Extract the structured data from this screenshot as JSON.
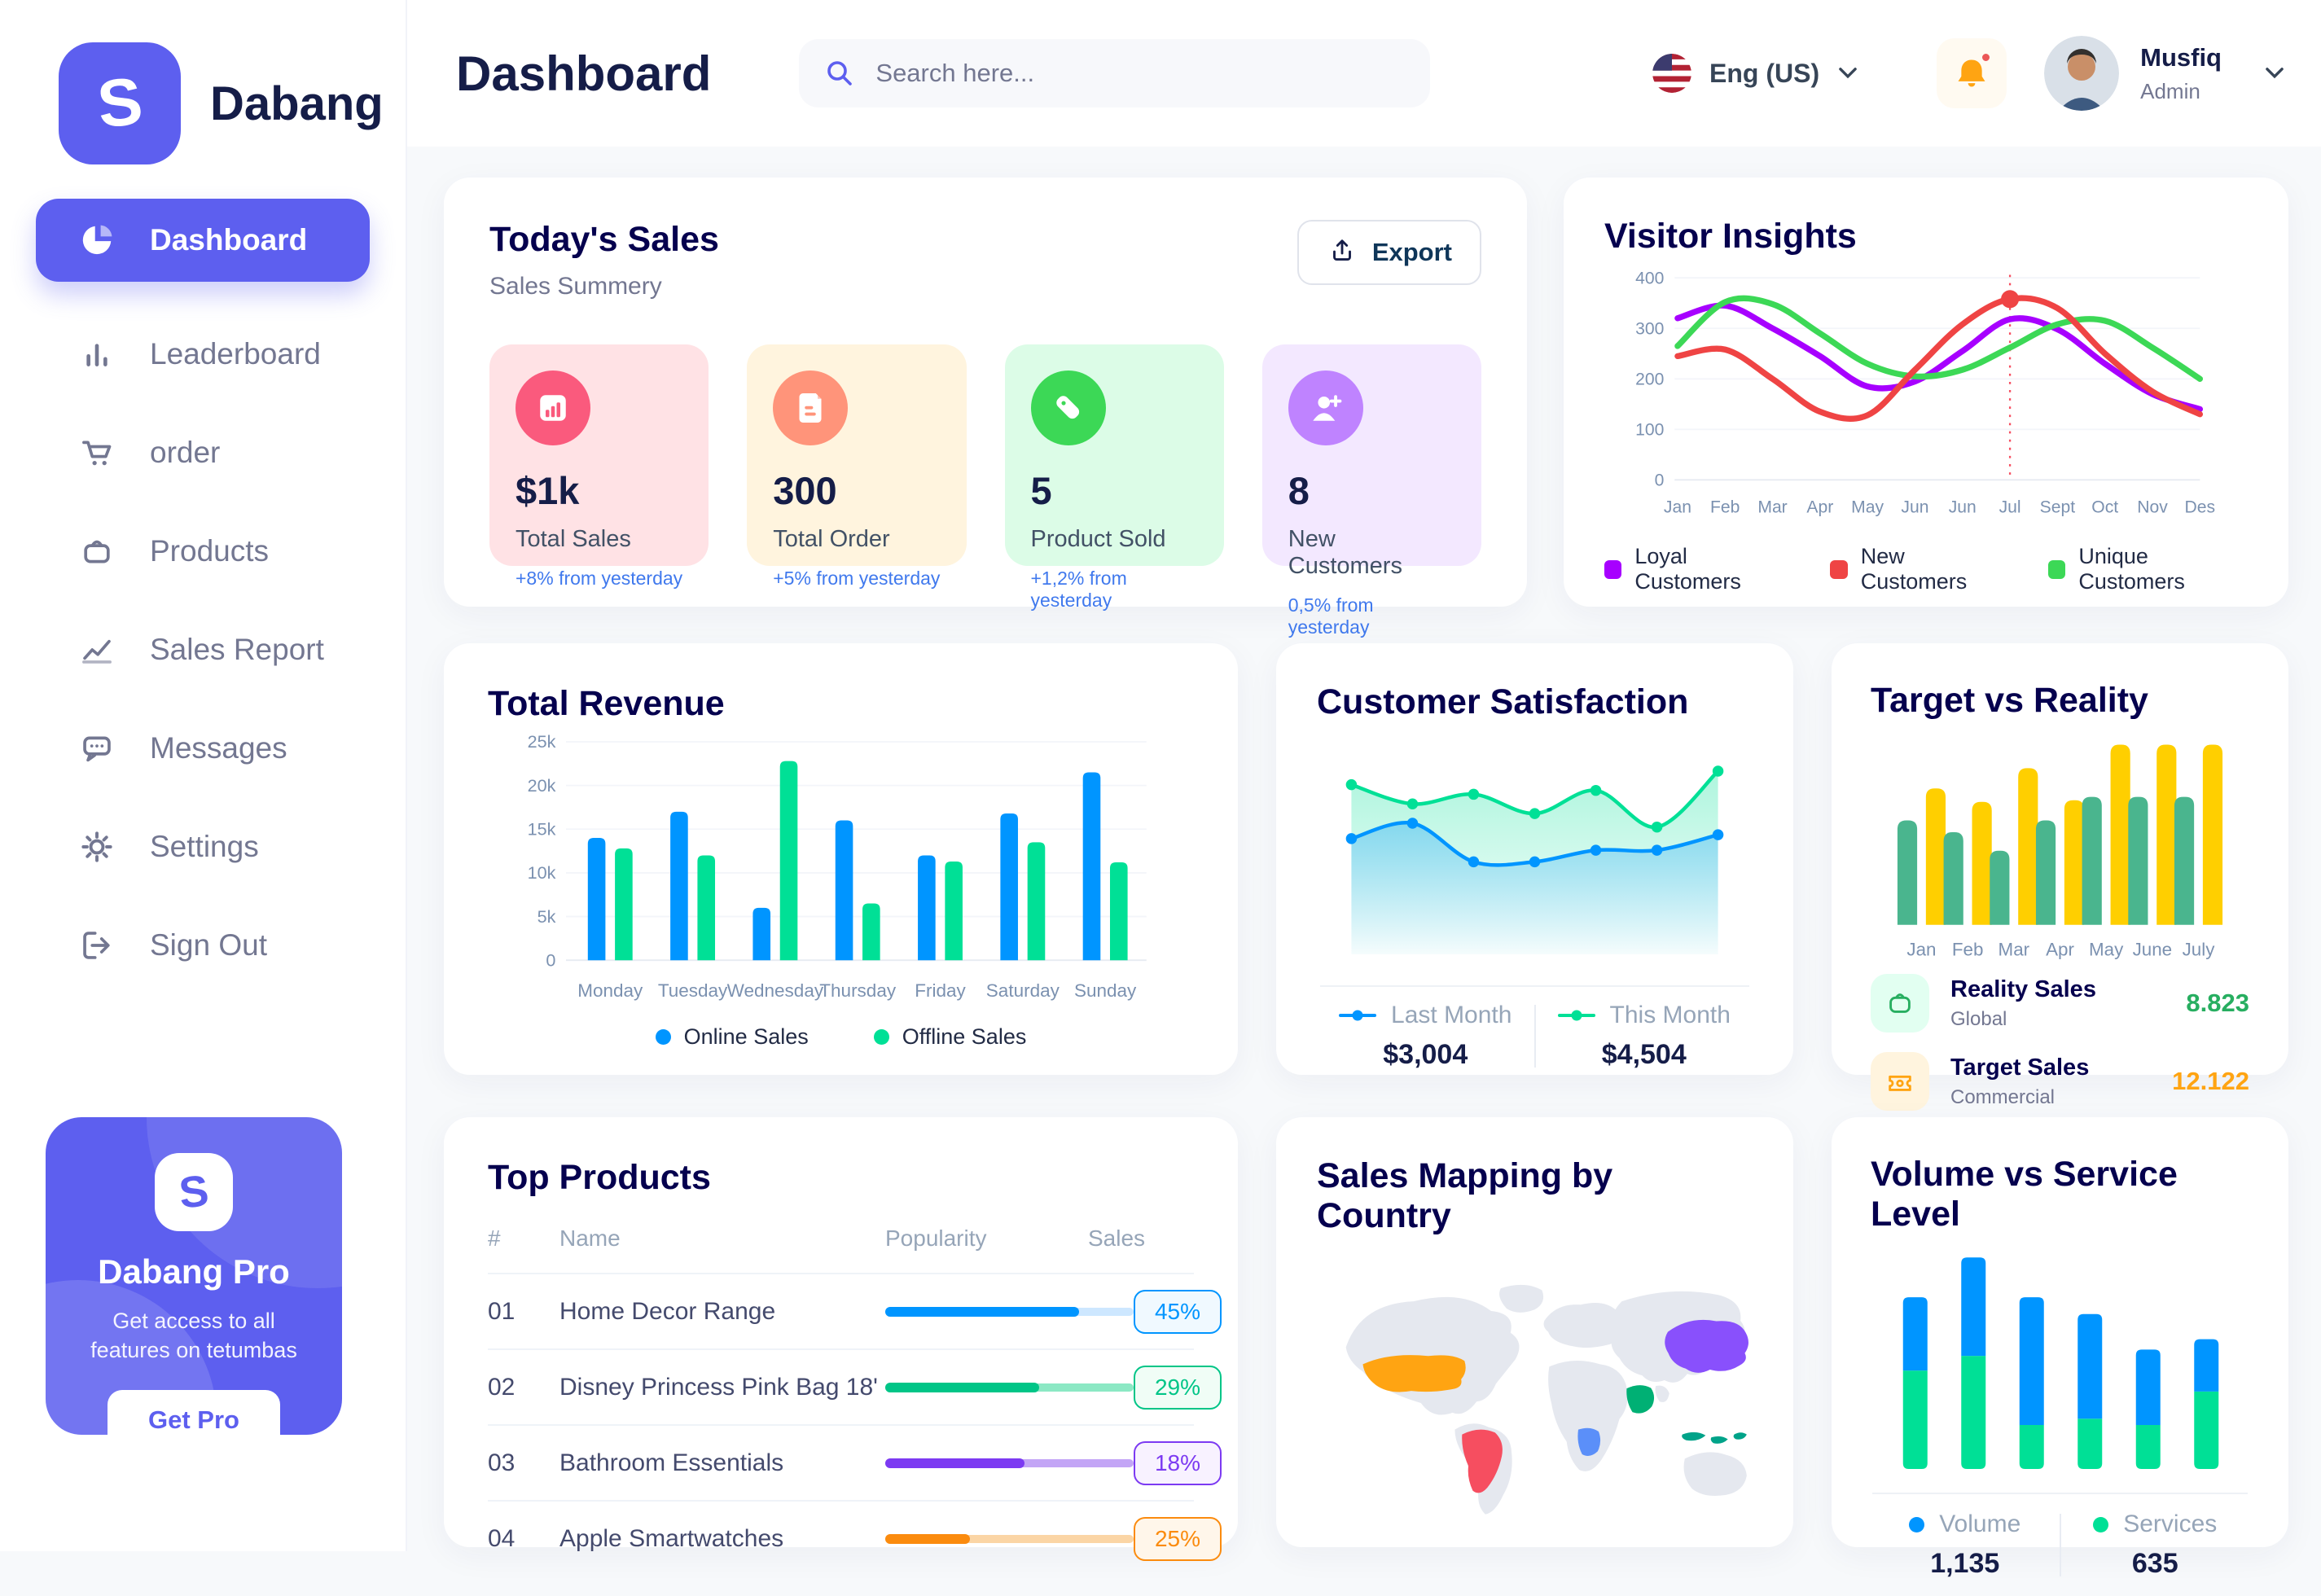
{
  "app": {
    "brand": "Dabang"
  },
  "header": {
    "title": "Dashboard",
    "search_placeholder": "Search here...",
    "language": "Eng (US)",
    "user_name": "Musfiq",
    "user_role": "Admin"
  },
  "sidebar": {
    "items": [
      {
        "label": "Dashboard",
        "active": true
      },
      {
        "label": "Leaderboard"
      },
      {
        "label": "order"
      },
      {
        "label": "Products"
      },
      {
        "label": "Sales Report"
      },
      {
        "label": "Messages"
      },
      {
        "label": "Settings"
      },
      {
        "label": "Sign Out"
      }
    ],
    "pro": {
      "title": "Dabang Pro",
      "line1": "Get access to all",
      "line2": "features on tetumbas",
      "cta": "Get Pro"
    }
  },
  "todays_sales": {
    "title": "Today's Sales",
    "subtitle": "Sales Summery",
    "export_label": "Export",
    "stats": [
      {
        "value": "$1k",
        "label": "Total Sales",
        "delta": "+8% from yesterday",
        "bg": "#FFE2E5",
        "accent": "#FA5A7D",
        "icon": "bar-chart-icon"
      },
      {
        "value": "300",
        "label": "Total Order",
        "delta": "+5% from yesterday",
        "bg": "#FFF4DE",
        "accent": "#FF947A",
        "icon": "order-file-icon"
      },
      {
        "value": "5",
        "label": "Product Sold",
        "delta": "+1,2% from yesterday",
        "bg": "#DCFCE7",
        "accent": "#3CD856",
        "icon": "tag-icon"
      },
      {
        "value": "8",
        "label": "New Customers",
        "delta": "0,5% from yesterday",
        "bg": "#F3E8FF",
        "accent": "#BF83FF",
        "icon": "user-plus-icon"
      }
    ]
  },
  "chart_data": [
    {
      "id": "visitor_insights",
      "type": "line",
      "title": "Visitor Insights",
      "x": [
        "Jan",
        "Feb",
        "Mar",
        "Apr",
        "May",
        "Jun",
        "Jun",
        "Jul",
        "Sept",
        "Oct",
        "Nov",
        "Des"
      ],
      "ylim": [
        0,
        400
      ],
      "yticks": [
        0,
        100,
        200,
        300,
        400
      ],
      "grid": true,
      "legend_position": "bottom",
      "annotation_x_index": 7,
      "series": [
        {
          "name": "Loyal Customers",
          "color": "#A700FF",
          "values": [
            320,
            345,
            300,
            245,
            185,
            195,
            255,
            318,
            298,
            230,
            170,
            140
          ]
        },
        {
          "name": "New Customers",
          "color": "#EF4444",
          "values": [
            245,
            258,
            200,
            135,
            128,
            218,
            308,
            358,
            340,
            250,
            175,
            130
          ]
        },
        {
          "name": "Unique Customers",
          "color": "#3CD856",
          "values": [
            265,
            352,
            348,
            290,
            230,
            205,
            218,
            262,
            308,
            315,
            262,
            200
          ]
        }
      ]
    },
    {
      "id": "total_revenue",
      "type": "bar",
      "title": "Total Revenue",
      "categories": [
        "Monday",
        "Tuesday",
        "Wednesday",
        "Thursday",
        "Friday",
        "Saturday",
        "Sunday"
      ],
      "ylim": [
        0,
        25000
      ],
      "ytick_labels": [
        "0",
        "5k",
        "10k",
        "15k",
        "20k",
        "25k"
      ],
      "series": [
        {
          "name": "Online Sales",
          "color": "#0095FF",
          "values": [
            14000,
            17000,
            6000,
            16000,
            12000,
            16800,
            21500
          ]
        },
        {
          "name": "Offline Sales",
          "color": "#00E096",
          "values": [
            12800,
            12000,
            22800,
            6500,
            11300,
            13500,
            11200
          ]
        }
      ]
    },
    {
      "id": "customer_satisfaction",
      "type": "area",
      "title": "Customer Satisfaction",
      "ylim": [
        0,
        110
      ],
      "series": [
        {
          "name": "Last Month",
          "color": "#0095FF",
          "total": "$3,004",
          "values": [
            60,
            68,
            48,
            48,
            54,
            54,
            62
          ]
        },
        {
          "name": "This Month",
          "color": "#00E096",
          "total": "$4,504",
          "values": [
            88,
            78,
            83,
            73,
            85,
            66,
            95
          ]
        }
      ]
    },
    {
      "id": "target_vs_reality",
      "type": "bar",
      "title": "Target vs Reality",
      "categories": [
        "Jan",
        "Feb",
        "Mar",
        "Apr",
        "May",
        "June",
        "July"
      ],
      "ylim": [
        0,
        11
      ],
      "series": [
        {
          "name": "Reality Sales",
          "subtitle": "Global",
          "color": "#4AB58E",
          "summary_value": "8.823",
          "summary_color": "#27AE60",
          "values": [
            6.2,
            5.5,
            4.4,
            6.2,
            7.6,
            7.6,
            7.6
          ]
        },
        {
          "name": "Target Sales",
          "subtitle": "Commercial",
          "color": "#FFCF00",
          "summary_value": "12.122",
          "summary_color": "#FFA412",
          "values": [
            8.1,
            7.3,
            9.3,
            7.4,
            10.7,
            10.7,
            10.7
          ]
        }
      ]
    },
    {
      "id": "sales_mapping",
      "type": "heatmap",
      "title": "Sales Mapping by Country",
      "countries": [
        {
          "name": "United States",
          "color": "#FFA412"
        },
        {
          "name": "Brazil",
          "color": "#F64E60"
        },
        {
          "name": "Saudi Arabia",
          "color": "#00B074"
        },
        {
          "name": "DR Congo",
          "color": "#5B8FF9"
        },
        {
          "name": "China",
          "color": "#8950FC"
        },
        {
          "name": "Indonesia",
          "color": "#00A389"
        }
      ]
    },
    {
      "id": "volume_service",
      "type": "bar",
      "stacked": true,
      "title": "Volume vs Service Level",
      "ylim": [
        0,
        10.5
      ],
      "series": [
        {
          "name": "Volume",
          "color": "#0095FF",
          "total": "1,135"
        },
        {
          "name": "Services",
          "color": "#00E096",
          "total": "635"
        }
      ],
      "bars": [
        {
          "volume": 3.5,
          "services": 4.7
        },
        {
          "volume": 4.7,
          "services": 5.4
        },
        {
          "volume": 6.1,
          "services": 2.1
        },
        {
          "volume": 5.0,
          "services": 2.4
        },
        {
          "volume": 3.6,
          "services": 2.1
        },
        {
          "volume": 2.5,
          "services": 3.7
        }
      ]
    },
    {
      "id": "top_products",
      "type": "table",
      "title": "Top Products",
      "headers": {
        "num": "#",
        "name": "Name",
        "popularity": "Popularity",
        "sales": "Sales"
      },
      "rows": [
        {
          "num": "01",
          "name": "Home Decor Range",
          "popularity_pct": 78,
          "sales": "45%",
          "color": "#0095FF",
          "track": "#CDE7FF",
          "badge_bg": "#F0F9FF"
        },
        {
          "num": "02",
          "name": "Disney Princess Pink Bag 18'",
          "popularity_pct": 62,
          "sales": "29%",
          "color": "#00C587",
          "track": "#8CE8C4",
          "badge_bg": "#F0FDF6"
        },
        {
          "num": "03",
          "name": "Bathroom Essentials",
          "popularity_pct": 56,
          "sales": "18%",
          "color": "#7C3AF2",
          "track": "#C3A5F6",
          "badge_bg": "#F8F2FF"
        },
        {
          "num": "04",
          "name": "Apple Smartwatches",
          "popularity_pct": 34,
          "sales": "25%",
          "color": "#FB8B0E",
          "track": "#FBD5A5",
          "badge_bg": "#FFF6EA"
        }
      ]
    }
  ]
}
